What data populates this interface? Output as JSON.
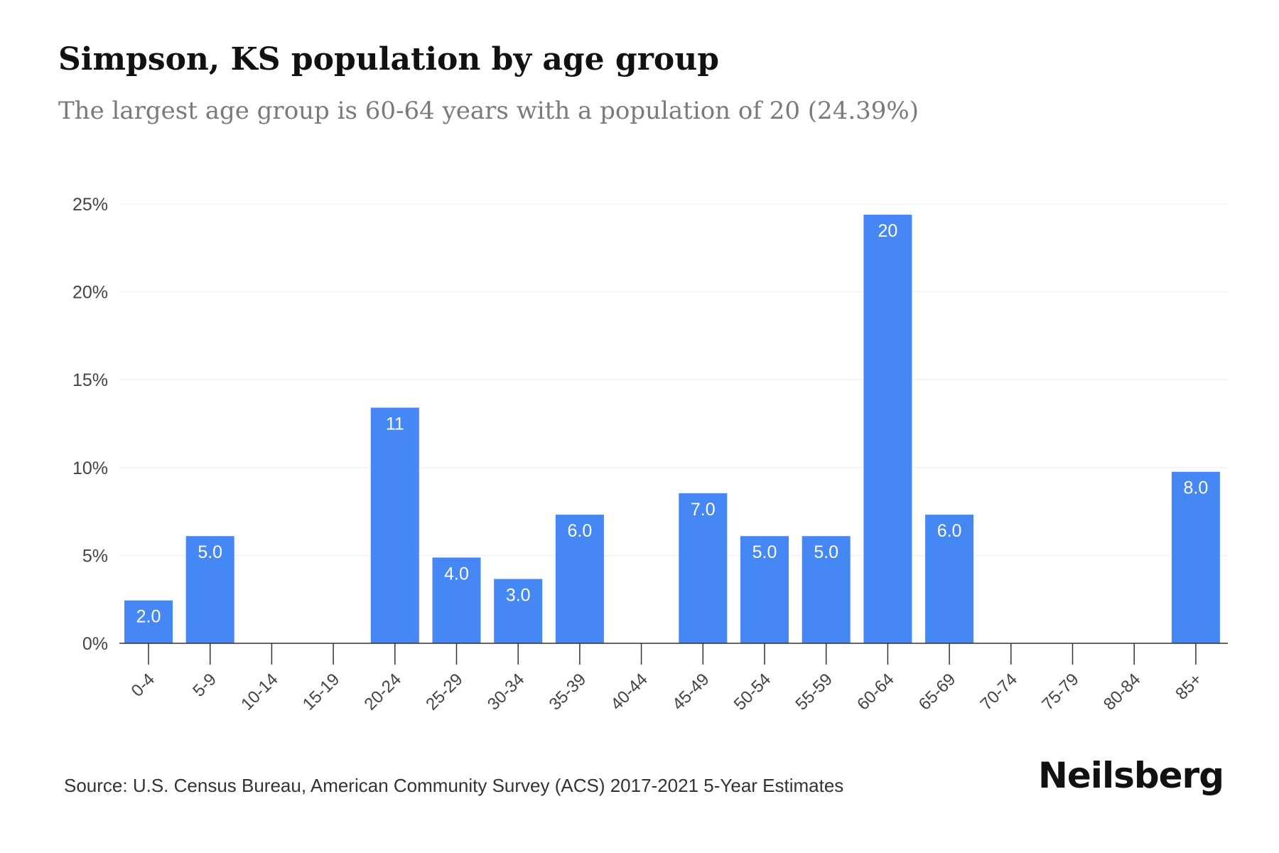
{
  "header": {
    "title": "Simpson, KS population by age group",
    "subtitle": "The largest age group is 60-64 years with a population of 20 (24.39%)"
  },
  "footer": {
    "source": "Source: U.S. Census Bureau, American Community Survey (ACS) 2017-2021 5-Year Estimates",
    "brand": "Neilsberg"
  },
  "colors": {
    "bar": "#4587f4",
    "bar_label": "#ffffff",
    "grid": "#ebebeb",
    "axis": "#333333",
    "tick_text": "#444444"
  },
  "chart_data": {
    "type": "bar",
    "title": "Simpson, KS population by age group",
    "subtitle": "The largest age group is 60-64 years with a population of 20 (24.39%)",
    "xlabel": "",
    "ylabel": "",
    "ylim": [
      0,
      25
    ],
    "yticks": [
      0,
      5,
      10,
      15,
      20,
      25
    ],
    "ytick_labels": [
      "0%",
      "5%",
      "10%",
      "15%",
      "20%",
      "25%"
    ],
    "grid": true,
    "legend": "none",
    "categories": [
      "0-4",
      "5-9",
      "10-14",
      "15-19",
      "20-24",
      "25-29",
      "30-34",
      "35-39",
      "40-44",
      "45-49",
      "50-54",
      "55-59",
      "60-64",
      "65-69",
      "70-74",
      "75-79",
      "80-84",
      "85+"
    ],
    "values": [
      2.44,
      6.1,
      0,
      0,
      13.41,
      4.88,
      3.66,
      7.32,
      0,
      8.54,
      6.1,
      6.1,
      24.39,
      7.32,
      0,
      0,
      0,
      9.76
    ],
    "data_labels": [
      "2.0",
      "5.0",
      "",
      "",
      "11",
      "4.0",
      "3.0",
      "6.0",
      "",
      "7.0",
      "5.0",
      "5.0",
      "20",
      "6.0",
      "",
      "",
      "",
      "8.0"
    ],
    "value_unit": "% of population",
    "label_unit": "population count"
  }
}
